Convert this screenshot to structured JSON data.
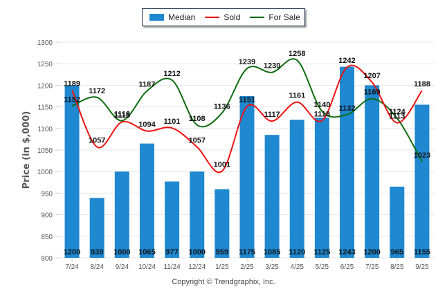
{
  "legend": {
    "items": [
      {
        "label": "Median",
        "type": "bar",
        "color": "#1e88d0"
      },
      {
        "label": "Sold",
        "type": "line",
        "color": "#ee1111"
      },
      {
        "label": "For Sale",
        "type": "line",
        "color": "#0b6b0b"
      }
    ]
  },
  "copyright": "Copyright © Trendgraphix, Inc.",
  "chart_data": {
    "type": "bar",
    "title": "",
    "xlabel": "",
    "ylabel": "Price (in $,000)",
    "ylim": [
      800,
      1300
    ],
    "yticks": [
      800,
      850,
      900,
      950,
      1000,
      1050,
      1100,
      1150,
      1200,
      1250,
      1300
    ],
    "grid": true,
    "legend_position": "top-center",
    "categories": [
      "7/24",
      "8/24",
      "9/24",
      "10/24",
      "11/24",
      "12/24",
      "1/25",
      "2/25",
      "3/25",
      "4/25",
      "5/25",
      "6/25",
      "7/25",
      "8/25",
      "9/25"
    ],
    "series": [
      {
        "name": "Median",
        "type": "bar",
        "color": "#1e88d0",
        "values": [
          1200,
          939,
          1000,
          1065,
          977,
          1000,
          959,
          1175,
          1085,
          1120,
          1125,
          1243,
          1200,
          965,
          1155
        ]
      },
      {
        "name": "Sold",
        "type": "line",
        "color": "#ee1111",
        "values": [
          1189,
          1057,
          1115,
          1094,
          1101,
          1057,
          1001,
          1151,
          1117,
          1161,
          1118,
          1242,
          1207,
          1113,
          1188
        ]
      },
      {
        "name": "For Sale",
        "type": "line",
        "color": "#0b6b0b",
        "values": [
          1152,
          1172,
          1118,
          1187,
          1212,
          1108,
          1136,
          1239,
          1230,
          1258,
          1140,
          1132,
          1169,
          1124,
          1023
        ]
      }
    ]
  }
}
